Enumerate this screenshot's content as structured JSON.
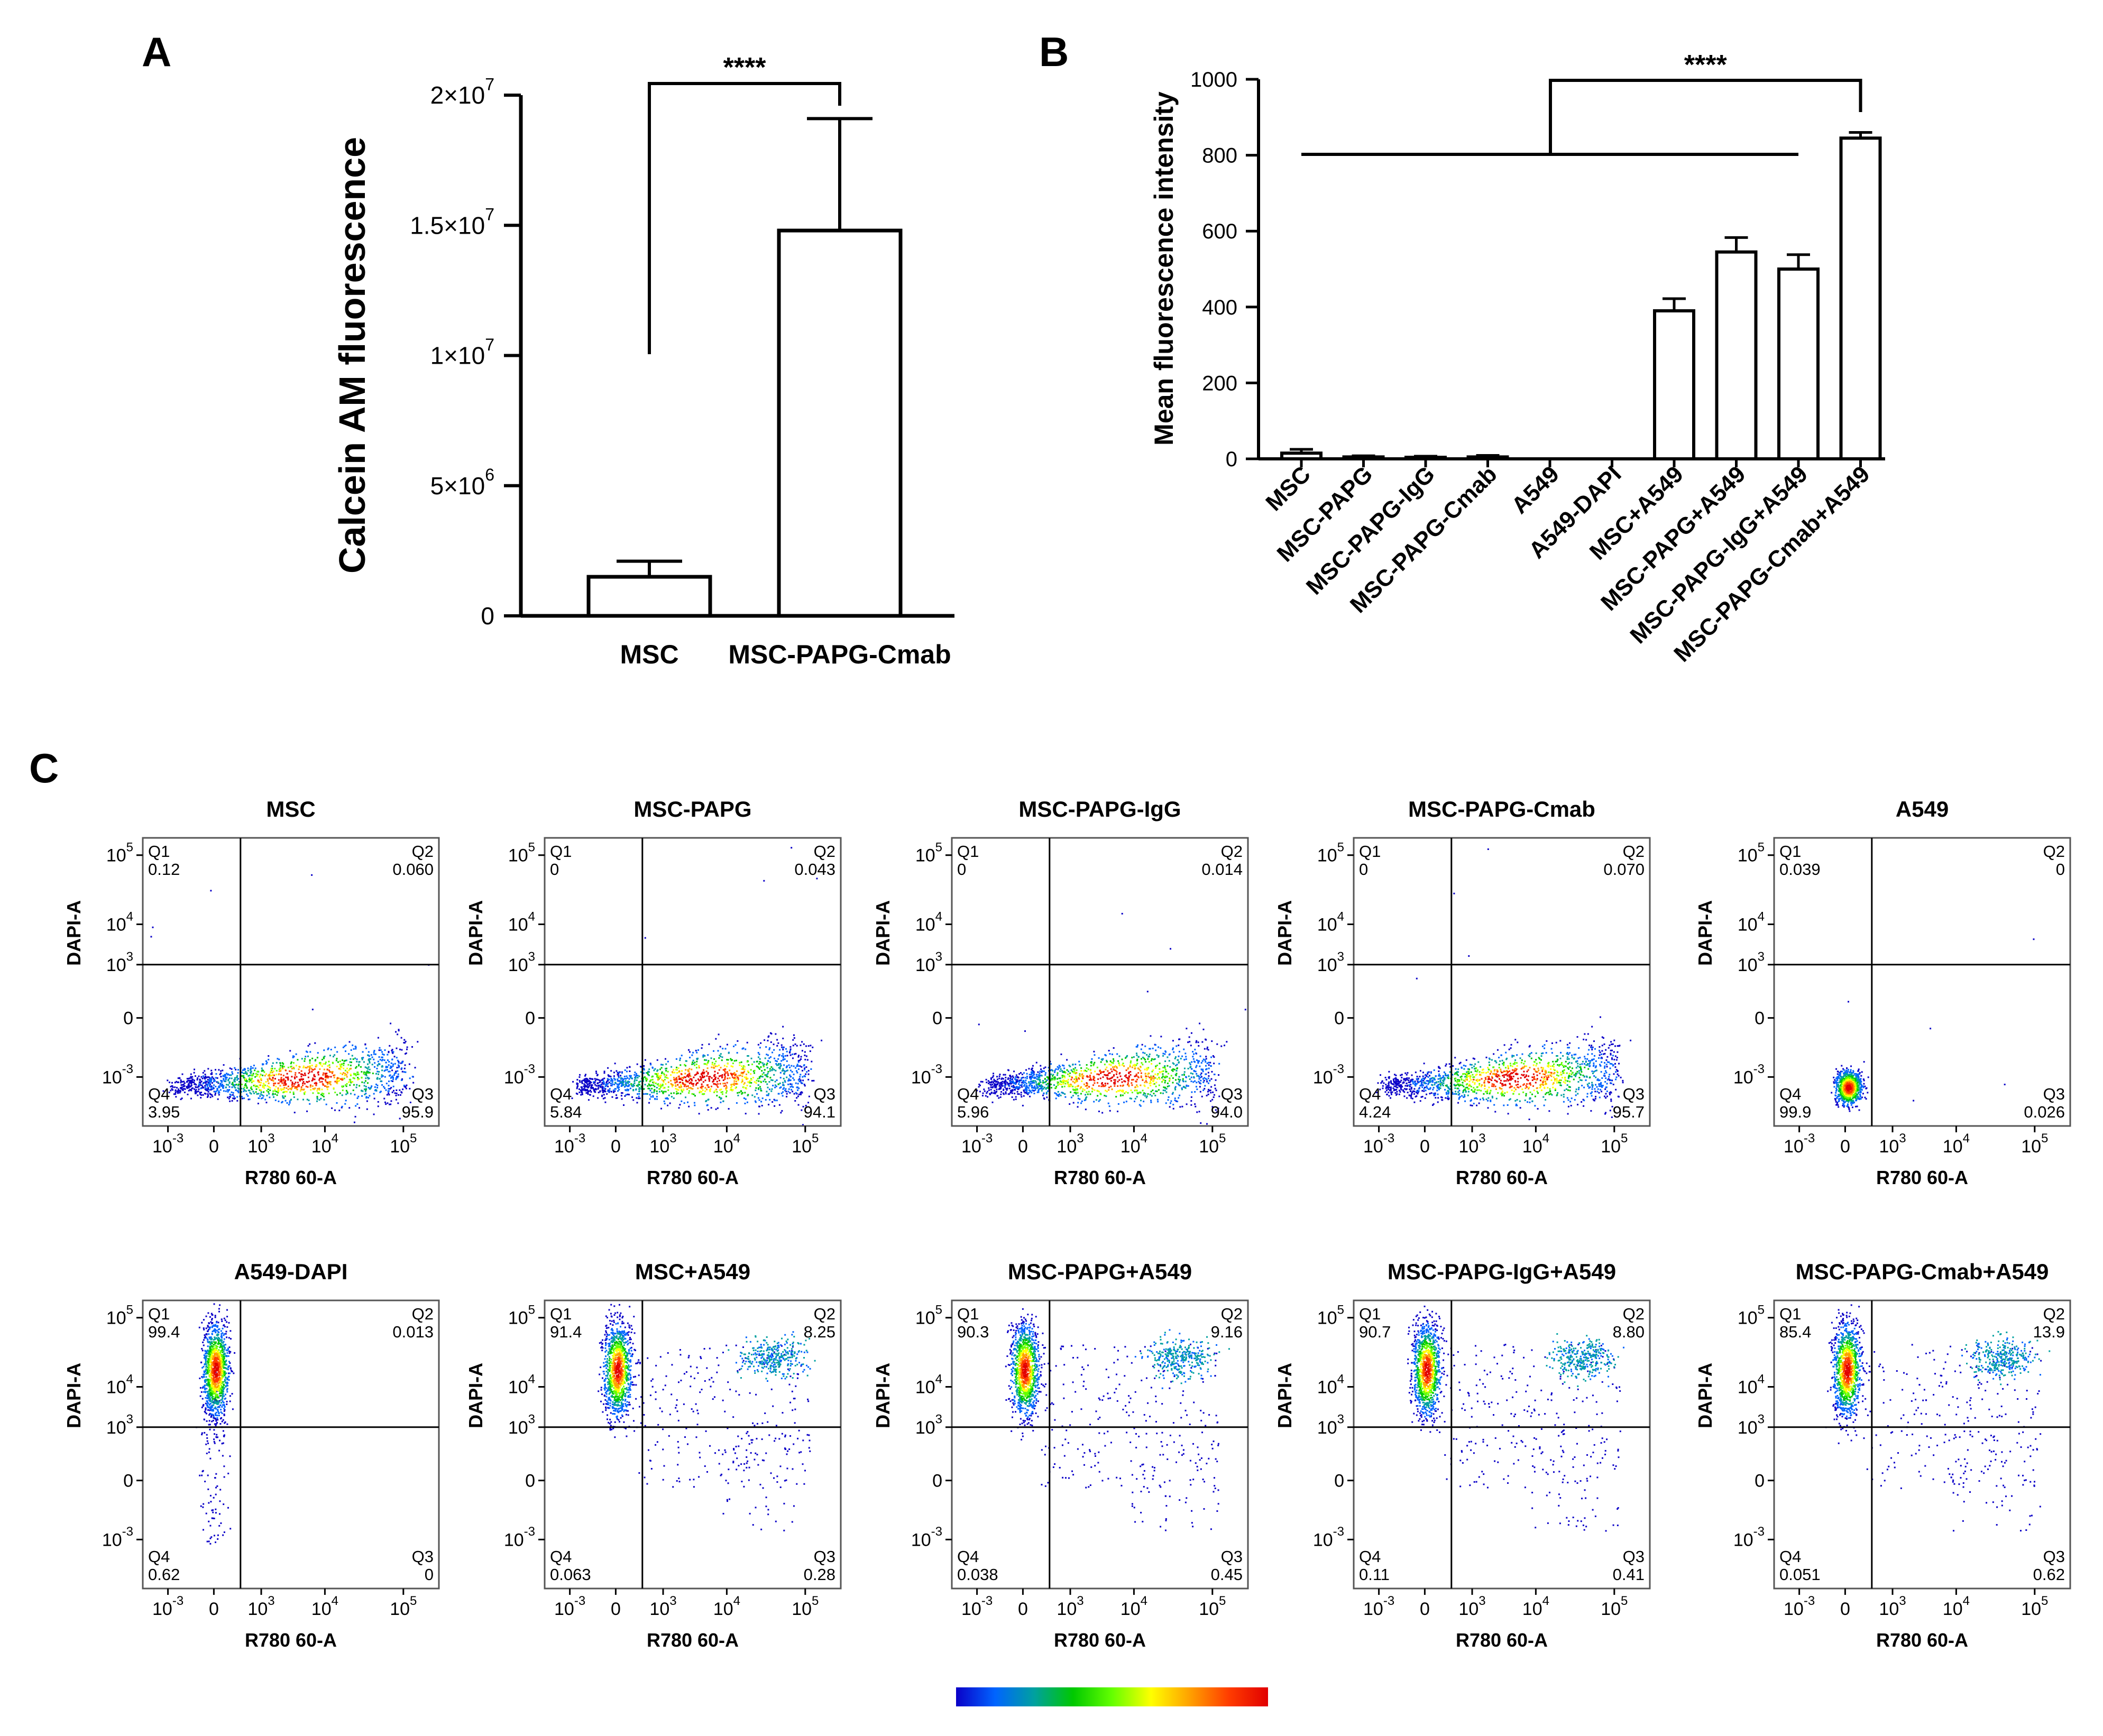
{
  "panels": {
    "a": "A",
    "b": "B",
    "c": "C"
  },
  "chart_data": [
    {
      "type": "bar",
      "panel": "A",
      "title": "",
      "ylabel": "Calcein AM fluorescence",
      "xlabel": "",
      "categories": [
        "MSC",
        "MSC-PAPG-Cmab"
      ],
      "values": [
        1500000,
        14800000
      ],
      "errors": [
        600000,
        4300000
      ],
      "ylim": [
        0,
        20000000
      ],
      "yticks": [
        0,
        5000000,
        10000000,
        15000000,
        20000000
      ],
      "ytick_labels": [
        {
          "base": "0",
          "exp": ""
        },
        {
          "base": "5×10",
          "exp": "6"
        },
        {
          "base": "1×10",
          "exp": "7"
        },
        {
          "base": "1.5×10",
          "exp": "7"
        },
        {
          "base": "2×10",
          "exp": "7"
        }
      ],
      "significance": {
        "label": "****",
        "between": [
          "MSC",
          "MSC-PAPG-Cmab"
        ]
      }
    },
    {
      "type": "bar",
      "panel": "B",
      "title": "",
      "ylabel": "Mean fluorescence intensity",
      "xlabel": "",
      "categories": [
        "MSC",
        "MSC-PAPG",
        "MSC-PAPG-IgG",
        "MSC-PAPG-Cmab",
        "A549",
        "A549-DAPI",
        "MSC+A549",
        "MSC-PAPG+A549",
        "MSC-PAPG-IgG+A549",
        "MSC-PAPG-Cmab+A549"
      ],
      "values": [
        15,
        5,
        4,
        5,
        0,
        0,
        390,
        545,
        500,
        845
      ],
      "errors": [
        10,
        3,
        3,
        4,
        0,
        0,
        32,
        38,
        38,
        15
      ],
      "ylim": [
        0,
        1000
      ],
      "yticks": [
        0,
        200,
        400,
        600,
        800,
        1000
      ],
      "significance": {
        "label": "****",
        "between": [
          "MSC … MSC-PAPG-IgG+A549",
          "MSC-PAPG-Cmab+A549"
        ]
      }
    },
    {
      "type": "scatter",
      "panel": "C",
      "description_axes": {
        "xlabel": "R780 60-A",
        "ylabel": "DAPI-A"
      },
      "x_ticks": [
        {
          "base": "10",
          "exp": "-3"
        },
        {
          "base": "0",
          "exp": ""
        },
        {
          "base": "10",
          "exp": "3"
        },
        {
          "base": "10",
          "exp": "4"
        },
        {
          "base": "10",
          "exp": "5"
        }
      ],
      "y_ticks": [
        {
          "base": "10",
          "exp": "5"
        },
        {
          "base": "10",
          "exp": "4"
        },
        {
          "base": "10",
          "exp": "3"
        },
        {
          "base": "0",
          "exp": ""
        },
        {
          "base": "10",
          "exp": "-3"
        }
      ],
      "quadrant_names": [
        "Q1",
        "Q2",
        "Q3",
        "Q4"
      ],
      "plots": [
        {
          "title": "MSC",
          "q1": "0.12",
          "q2": "0.060",
          "q3": "95.9",
          "q4": "3.95",
          "pattern": "msc"
        },
        {
          "title": "MSC-PAPG",
          "q1": "0",
          "q2": "0.043",
          "q3": "94.1",
          "q4": "5.84",
          "pattern": "msc"
        },
        {
          "title": "MSC-PAPG-IgG",
          "q1": "0",
          "q2": "0.014",
          "q3": "94.0",
          "q4": "5.96",
          "pattern": "msc"
        },
        {
          "title": "MSC-PAPG-Cmab",
          "q1": "0",
          "q2": "0.070",
          "q3": "95.7",
          "q4": "4.24",
          "pattern": "msc"
        },
        {
          "title": "A549",
          "q1": "0.039",
          "q2": "0",
          "q3": "0.026",
          "q4": "99.9",
          "pattern": "a549"
        },
        {
          "title": "A549-DAPI",
          "q1": "99.4",
          "q2": "0.013",
          "q3": "0",
          "q4": "0.62",
          "pattern": "dapi"
        },
        {
          "title": "MSC+A549",
          "q1": "91.4",
          "q2": "8.25",
          "q3": "0.28",
          "q4": "0.063",
          "pattern": "mix"
        },
        {
          "title": "MSC-PAPG+A549",
          "q1": "90.3",
          "q2": "9.16",
          "q3": "0.45",
          "q4": "0.038",
          "pattern": "mix"
        },
        {
          "title": "MSC-PAPG-IgG+A549",
          "q1": "90.7",
          "q2": "8.80",
          "q3": "0.41",
          "q4": "0.11",
          "pattern": "mix"
        },
        {
          "title": "MSC-PAPG-Cmab+A549",
          "q1": "85.4",
          "q2": "13.9",
          "q3": "0.62",
          "q4": "0.051",
          "pattern": "mix"
        }
      ],
      "colorbar": [
        "#0a00c8",
        "#0064ff",
        "#00a0a0",
        "#00c800",
        "#64ff00",
        "#ffff00",
        "#ffa000",
        "#ff3c00",
        "#e10000"
      ]
    }
  ]
}
